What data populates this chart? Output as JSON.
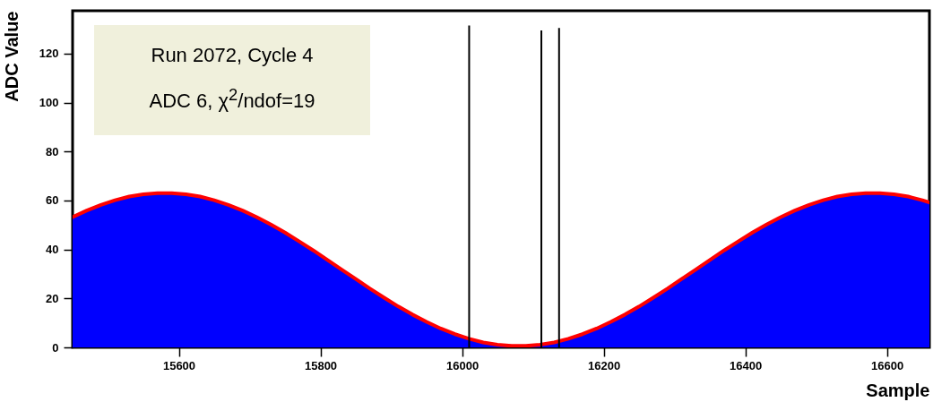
{
  "chart_data": {
    "type": "area",
    "xlabel": "Sample",
    "ylabel": "ADC Value",
    "annotations": [
      "Run 2072, Cycle 4",
      "ADC 6, χ$^{2}$/ndof=19"
    ],
    "x": [
      15450,
      15470,
      15490,
      15510,
      15530,
      15550,
      15570,
      15590,
      15610,
      15630,
      15650,
      15670,
      15690,
      15710,
      15730,
      15750,
      15770,
      15790,
      15810,
      15830,
      15850,
      15870,
      15890,
      15910,
      15930,
      15950,
      15970,
      15990,
      16010,
      16030,
      16050,
      16070,
      16090,
      16110,
      16130,
      16150,
      16170,
      16190,
      16210,
      16230,
      16250,
      16270,
      16290,
      16310,
      16330,
      16350,
      16370,
      16390,
      16410,
      16430,
      16450,
      16470,
      16490,
      16510,
      16530,
      16550,
      16570,
      16590,
      16610,
      16630,
      16650,
      16660
    ],
    "series": [
      {
        "color": "#0000ff",
        "values": [
          53.2,
          55.9,
          58.2,
          60.1,
          61.6,
          62.5,
          63.0,
          63.0,
          62.5,
          61.6,
          60.1,
          58.2,
          55.9,
          53.2,
          50.2,
          46.9,
          43.3,
          39.6,
          35.7,
          31.8,
          27.9,
          24.0,
          20.3,
          16.7,
          13.4,
          10.4,
          7.7,
          5.4,
          3.5,
          2.0,
          1.1,
          0.6,
          0.6,
          1.1,
          2.0,
          3.5,
          5.4,
          7.7,
          10.4,
          13.4,
          16.7,
          20.3,
          24.0,
          27.9,
          31.8,
          35.7,
          39.6,
          43.3,
          46.9,
          50.2,
          53.2,
          55.9,
          58.2,
          60.1,
          61.6,
          62.5,
          63.0,
          63.0,
          62.5,
          61.6,
          60.1,
          59.2
        ]
      },
      {
        "type": "line",
        "color": "#ff0000",
        "values": [
          53.2,
          55.9,
          58.2,
          60.1,
          61.6,
          62.5,
          63.0,
          63.0,
          62.5,
          61.6,
          60.1,
          58.2,
          55.9,
          53.2,
          50.2,
          46.9,
          43.3,
          39.6,
          35.7,
          31.8,
          27.9,
          24.0,
          20.3,
          16.7,
          13.4,
          10.4,
          7.7,
          5.4,
          3.5,
          2.0,
          1.1,
          0.6,
          0.6,
          1.1,
          2.0,
          3.5,
          5.4,
          7.7,
          10.4,
          13.4,
          16.7,
          20.3,
          24.0,
          27.9,
          31.8,
          35.7,
          39.6,
          43.3,
          46.9,
          50.2,
          53.2,
          55.9,
          58.2,
          60.1,
          61.6,
          62.5,
          63.0,
          63.0,
          62.5,
          61.6,
          60.1,
          59.2
        ]
      },
      {
        "type": "bar",
        "color": "#000000",
        "x": [
          16010,
          16112,
          16137
        ],
        "values": [
          131.5,
          129.5,
          130.5
        ]
      }
    ],
    "xlim": [
      15450,
      16660
    ],
    "xticks": [
      15600,
      15800,
      16000,
      16200,
      16400,
      16600
    ],
    "ylim": [
      0,
      137.5
    ],
    "yticks": [
      0,
      20,
      40,
      60,
      80,
      100,
      120
    ],
    "grid": false
  }
}
